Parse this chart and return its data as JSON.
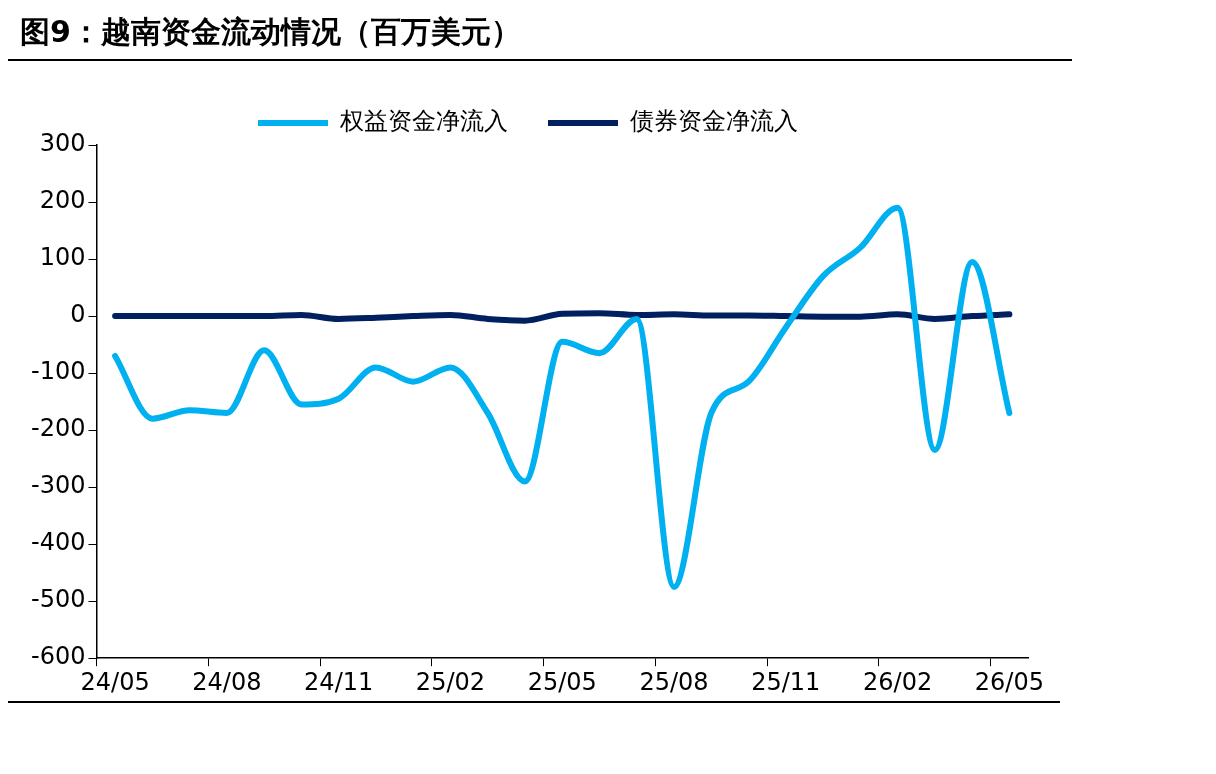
{
  "chart_data": {
    "type": "line",
    "title": "图9：越南资金流动情况（百万美元）",
    "categories": [
      "24/05",
      null,
      null,
      "24/08",
      null,
      null,
      "24/11",
      null,
      null,
      "25/02",
      null,
      null,
      "25/05",
      null,
      null,
      "25/08",
      null,
      null,
      "25/11",
      null,
      null,
      "26/02",
      null,
      null,
      "26/05"
    ],
    "series": [
      {
        "name": "权益资金净流入",
        "color": "#00b0f0",
        "values": [
          -70,
          -180,
          -165,
          -170,
          -60,
          -155,
          -145,
          -90,
          -115,
          -90,
          -170,
          -290,
          -45,
          -65,
          -5,
          -475,
          -170,
          -115,
          -20,
          70,
          120,
          190,
          -235,
          95,
          -170
        ]
      },
      {
        "name": "债券资金净流入",
        "color": "#002060",
        "values": [
          0,
          0,
          0,
          0,
          0,
          2,
          -5,
          -3,
          0,
          2,
          -5,
          -8,
          4,
          5,
          2,
          3,
          1,
          1,
          0,
          -1,
          -1,
          3,
          -5,
          0,
          3
        ]
      }
    ],
    "ylim": [
      -600,
      300
    ],
    "yticks": [
      -600,
      -500,
      -400,
      -300,
      -200,
      -100,
      0,
      100,
      200,
      300
    ],
    "grid": false,
    "legend": "top",
    "marker": "none",
    "line_style": "solid"
  }
}
